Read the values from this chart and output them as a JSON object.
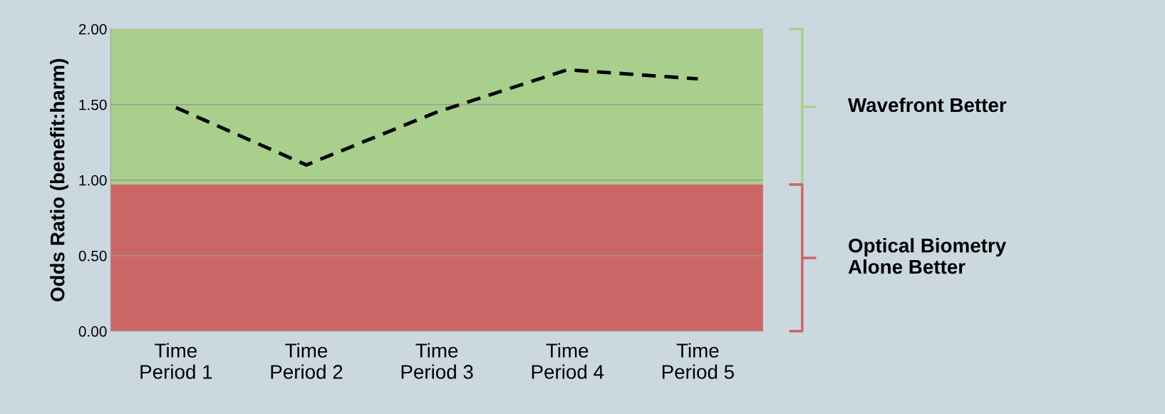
{
  "chart_data": {
    "type": "line",
    "ylabel": "Odds Ratio (benefit:harm)",
    "categories": [
      "Time\nPeriod 1",
      "Time\nPeriod 2",
      "Time\nPeriod 3",
      "Time\nPeriod 4",
      "Time\nPeriod 5"
    ],
    "series": [
      {
        "color": "#000000",
        "values": [
          1.48,
          1.1,
          1.45,
          1.73,
          1.67
        ]
      }
    ],
    "ylim": [
      0,
      2
    ],
    "yticks": [
      {
        "value": 0,
        "label": "0.00"
      },
      {
        "value": 0.5,
        "label": "0.50"
      },
      {
        "value": 1,
        "label": "1.00"
      },
      {
        "value": 1.5,
        "label": "1.50"
      },
      {
        "value": 2,
        "label": "2.00"
      }
    ],
    "bands": [
      {
        "axis": "y",
        "from": 0.97,
        "to": 2,
        "color": "#a8cf8c"
      },
      {
        "axis": "y",
        "from": 0,
        "to": 0.97,
        "color": "#cc6666"
      }
    ],
    "annotations": [
      "Wavefront Better",
      "Optical Biometry\nAlone Better"
    ],
    "grid": "y",
    "line_style": "dashed",
    "marker": "none",
    "legend": false
  }
}
